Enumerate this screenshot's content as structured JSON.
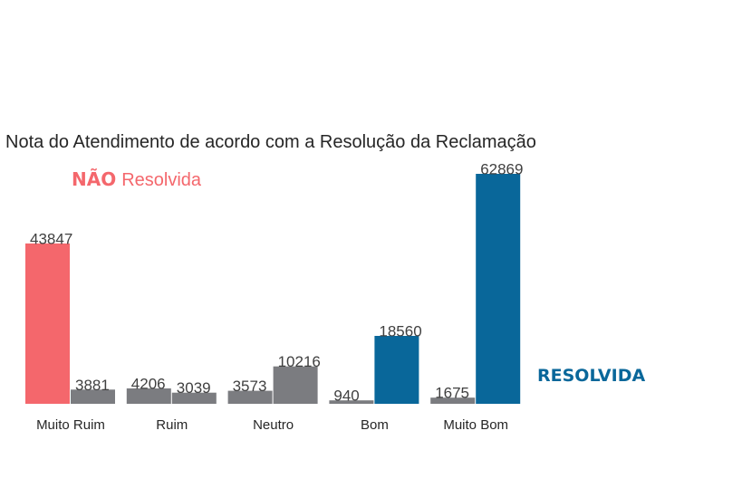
{
  "chart_data": {
    "type": "bar",
    "title": "Nota do Atendimento de acordo com a Resolução da Reclamação",
    "categories": [
      "Muito Ruim",
      "Ruim",
      "Neutro",
      "Bom",
      "Muito Bom"
    ],
    "series": [
      {
        "values": [
          43847,
          4206,
          3573,
          940,
          1675
        ]
      },
      {
        "values": [
          3881,
          3039,
          10216,
          18560,
          62869
        ]
      }
    ],
    "bar_colors": [
      [
        "#f4676c",
        "#7b7c80"
      ],
      [
        "#7b7c80",
        "#7b7c80"
      ],
      [
        "#7b7c80",
        "#7b7c80"
      ],
      [
        "#7b7c80",
        "#09679a"
      ],
      [
        "#7b7c80",
        "#09679a"
      ]
    ],
    "ylim": [
      0,
      62869
    ],
    "grid": false,
    "annotations": {
      "nao_resolvida": {
        "bold": "NÃO",
        "rest": "Resolvida",
        "color": "#f4676c"
      },
      "resolvida": {
        "text": "RESOLVIDA",
        "color": "#09679a"
      }
    },
    "colors": {
      "label_text": "#404040",
      "tick_text": "#262626",
      "title_text": "#262626"
    }
  }
}
